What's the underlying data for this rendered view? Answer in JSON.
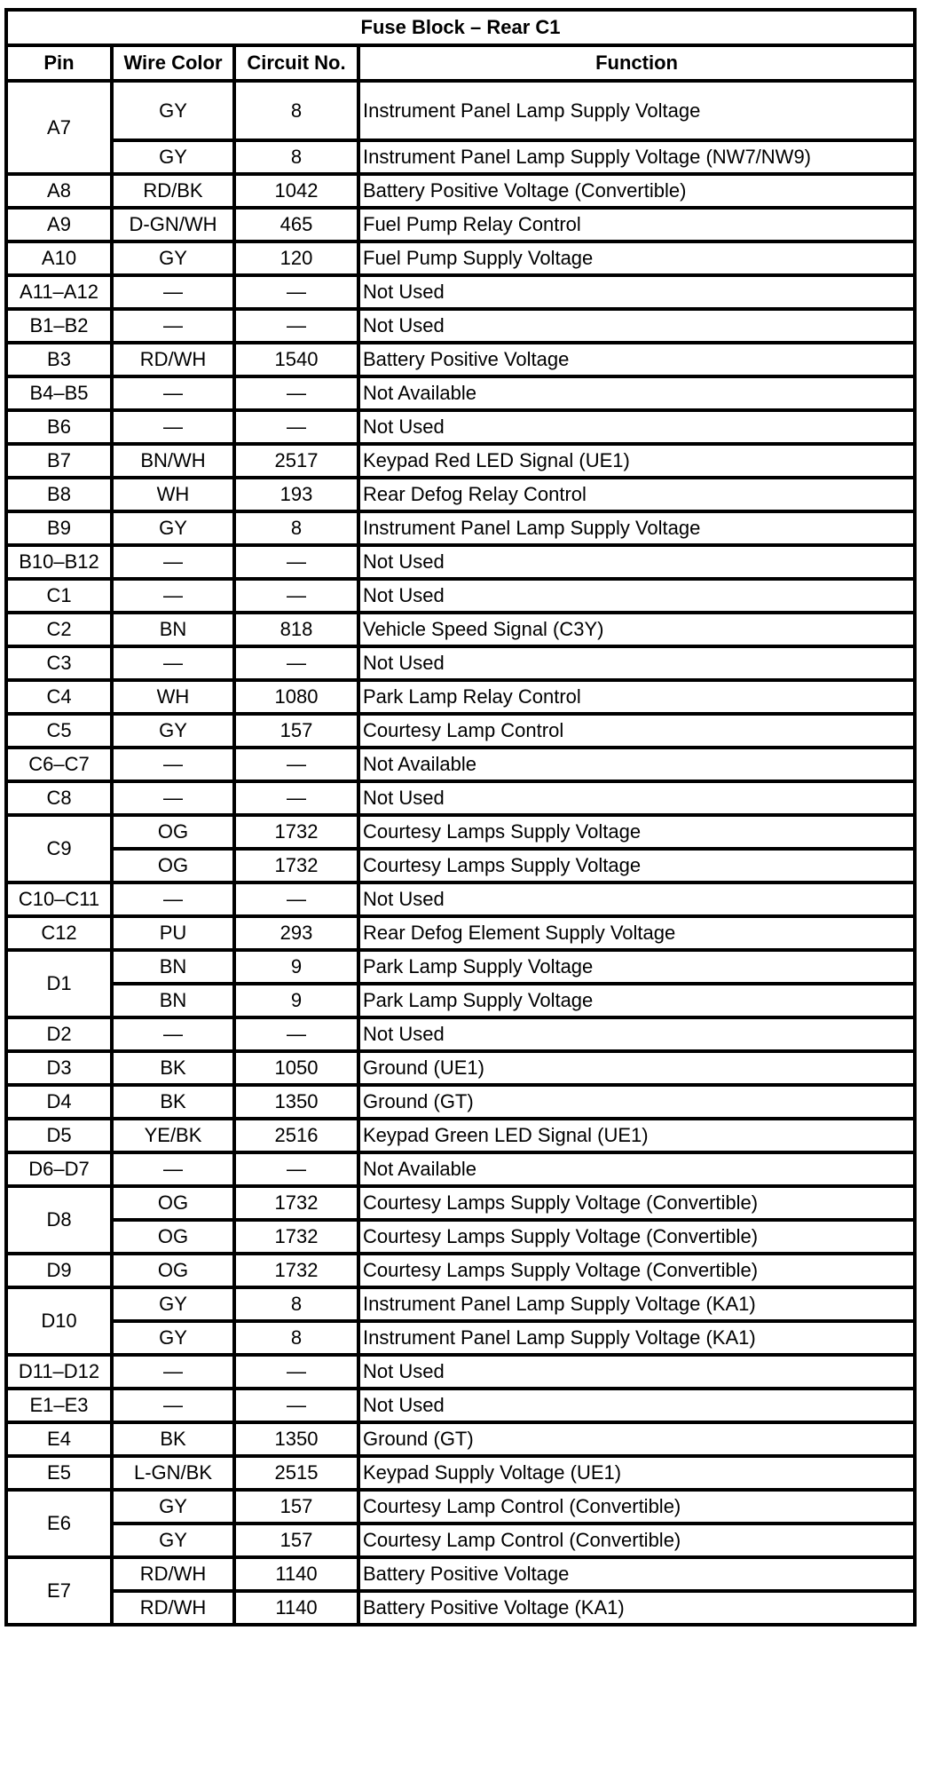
{
  "title": "Fuse Block – Rear C1",
  "headers": {
    "pin": "Pin",
    "wire_color": "Wire Color",
    "circuit": "Circuit No.",
    "function": "Function"
  },
  "rows": [
    {
      "pin": "A7",
      "wires": [
        {
          "color": "GY",
          "circuit": "8",
          "function": "Instrument Panel Lamp Supply Voltage"
        },
        {
          "color": "GY",
          "circuit": "8",
          "function": "Instrument Panel Lamp Supply Voltage (NW7/NW9)"
        }
      ]
    },
    {
      "pin": "A8",
      "wires": [
        {
          "color": "RD/BK",
          "circuit": "1042",
          "function": "Battery Positive Voltage (Convertible)"
        }
      ]
    },
    {
      "pin": "A9",
      "wires": [
        {
          "color": "D-GN/WH",
          "circuit": "465",
          "function": "Fuel Pump Relay Control"
        }
      ]
    },
    {
      "pin": "A10",
      "wires": [
        {
          "color": "GY",
          "circuit": "120",
          "function": "Fuel Pump Supply Voltage"
        }
      ]
    },
    {
      "pin": "A11–A12",
      "wires": [
        {
          "color": "—",
          "circuit": "—",
          "function": "Not Used"
        }
      ]
    },
    {
      "pin": "B1–B2",
      "wires": [
        {
          "color": "—",
          "circuit": "—",
          "function": "Not Used"
        }
      ]
    },
    {
      "pin": "B3",
      "wires": [
        {
          "color": "RD/WH",
          "circuit": "1540",
          "function": "Battery Positive Voltage"
        }
      ]
    },
    {
      "pin": "B4–B5",
      "wires": [
        {
          "color": "—",
          "circuit": "—",
          "function": "Not Available"
        }
      ]
    },
    {
      "pin": "B6",
      "wires": [
        {
          "color": "—",
          "circuit": "—",
          "function": "Not Used"
        }
      ]
    },
    {
      "pin": "B7",
      "wires": [
        {
          "color": "BN/WH",
          "circuit": "2517",
          "function": "Keypad Red LED Signal (UE1)"
        }
      ]
    },
    {
      "pin": "B8",
      "wires": [
        {
          "color": "WH",
          "circuit": "193",
          "function": "Rear Defog Relay Control"
        }
      ]
    },
    {
      "pin": "B9",
      "wires": [
        {
          "color": "GY",
          "circuit": "8",
          "function": "Instrument Panel Lamp Supply Voltage"
        }
      ]
    },
    {
      "pin": "B10–B12",
      "wires": [
        {
          "color": "—",
          "circuit": "—",
          "function": "Not Used"
        }
      ]
    },
    {
      "pin": "C1",
      "wires": [
        {
          "color": "—",
          "circuit": "—",
          "function": "Not Used"
        }
      ]
    },
    {
      "pin": "C2",
      "wires": [
        {
          "color": "BN",
          "circuit": "818",
          "function": "Vehicle Speed Signal (C3Y)"
        }
      ]
    },
    {
      "pin": "C3",
      "wires": [
        {
          "color": "—",
          "circuit": "—",
          "function": "Not Used"
        }
      ]
    },
    {
      "pin": "C4",
      "wires": [
        {
          "color": "WH",
          "circuit": "1080",
          "function": "Park Lamp Relay Control"
        }
      ]
    },
    {
      "pin": "C5",
      "wires": [
        {
          "color": "GY",
          "circuit": "157",
          "function": "Courtesy Lamp Control"
        }
      ]
    },
    {
      "pin": "C6–C7",
      "wires": [
        {
          "color": "—",
          "circuit": "—",
          "function": "Not Available"
        }
      ]
    },
    {
      "pin": "C8",
      "wires": [
        {
          "color": "—",
          "circuit": "—",
          "function": "Not Used"
        }
      ]
    },
    {
      "pin": "C9",
      "wires": [
        {
          "color": "OG",
          "circuit": "1732",
          "function": "Courtesy Lamps Supply Voltage"
        },
        {
          "color": "OG",
          "circuit": "1732",
          "function": "Courtesy Lamps Supply Voltage"
        }
      ]
    },
    {
      "pin": "C10–C11",
      "wires": [
        {
          "color": "—",
          "circuit": "—",
          "function": "Not Used"
        }
      ]
    },
    {
      "pin": "C12",
      "wires": [
        {
          "color": "PU",
          "circuit": "293",
          "function": "Rear Defog Element Supply Voltage"
        }
      ]
    },
    {
      "pin": "D1",
      "wires": [
        {
          "color": "BN",
          "circuit": "9",
          "function": "Park Lamp Supply Voltage"
        },
        {
          "color": "BN",
          "circuit": "9",
          "function": "Park Lamp Supply Voltage"
        }
      ]
    },
    {
      "pin": "D2",
      "wires": [
        {
          "color": "—",
          "circuit": "—",
          "function": "Not Used"
        }
      ]
    },
    {
      "pin": "D3",
      "wires": [
        {
          "color": "BK",
          "circuit": "1050",
          "function": "Ground (UE1)"
        }
      ]
    },
    {
      "pin": "D4",
      "wires": [
        {
          "color": "BK",
          "circuit": "1350",
          "function": "Ground (GT)"
        }
      ]
    },
    {
      "pin": "D5",
      "wires": [
        {
          "color": "YE/BK",
          "circuit": "2516",
          "function": "Keypad Green LED Signal (UE1)"
        }
      ]
    },
    {
      "pin": "D6–D7",
      "wires": [
        {
          "color": "—",
          "circuit": "—",
          "function": "Not Available"
        }
      ]
    },
    {
      "pin": "D8",
      "wires": [
        {
          "color": "OG",
          "circuit": "1732",
          "function": "Courtesy Lamps Supply Voltage (Convertible)"
        },
        {
          "color": "OG",
          "circuit": "1732",
          "function": "Courtesy Lamps Supply Voltage (Convertible)"
        }
      ]
    },
    {
      "pin": "D9",
      "wires": [
        {
          "color": "OG",
          "circuit": "1732",
          "function": "Courtesy Lamps Supply Voltage (Convertible)"
        }
      ]
    },
    {
      "pin": "D10",
      "wires": [
        {
          "color": "GY",
          "circuit": "8",
          "function": "Instrument Panel Lamp Supply Voltage (KA1)"
        },
        {
          "color": "GY",
          "circuit": "8",
          "function": "Instrument Panel Lamp Supply Voltage (KA1)"
        }
      ]
    },
    {
      "pin": "D11–D12",
      "wires": [
        {
          "color": "—",
          "circuit": "—",
          "function": "Not Used"
        }
      ]
    },
    {
      "pin": "E1–E3",
      "wires": [
        {
          "color": "—",
          "circuit": "—",
          "function": "Not Used"
        }
      ]
    },
    {
      "pin": "E4",
      "wires": [
        {
          "color": "BK",
          "circuit": "1350",
          "function": "Ground (GT)"
        }
      ]
    },
    {
      "pin": "E5",
      "wires": [
        {
          "color": "L-GN/BK",
          "circuit": "2515",
          "function": "Keypad Supply Voltage (UE1)"
        }
      ]
    },
    {
      "pin": "E6",
      "wires": [
        {
          "color": "GY",
          "circuit": "157",
          "function": "Courtesy Lamp Control (Convertible)"
        },
        {
          "color": "GY",
          "circuit": "157",
          "function": "Courtesy Lamp Control (Convertible)"
        }
      ]
    },
    {
      "pin": "E7",
      "wires": [
        {
          "color": "RD/WH",
          "circuit": "1140",
          "function": "Battery Positive Voltage"
        },
        {
          "color": "RD/WH",
          "circuit": "1140",
          "function": "Battery Positive Voltage (KA1)"
        }
      ]
    }
  ]
}
